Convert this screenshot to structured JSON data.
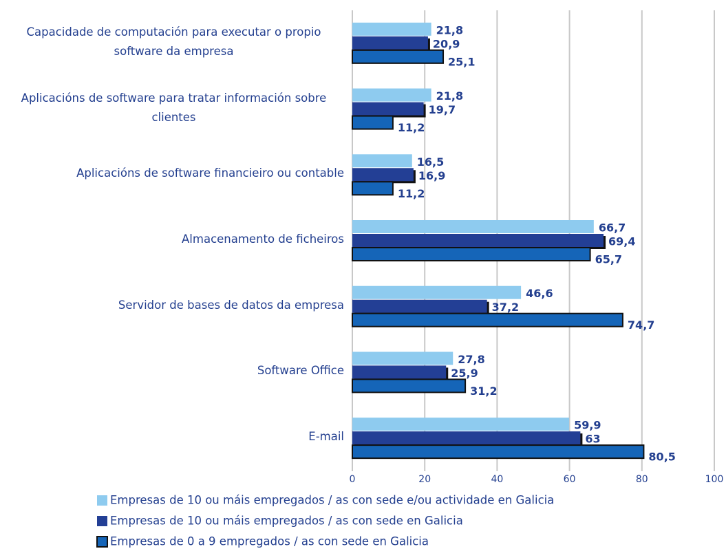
{
  "chart_data": {
    "type": "bar",
    "orientation": "horizontal",
    "categories": [
      "Capacidade de computación para executar o propio software da empresa",
      "Aplicacións de software para tratar información sobre clientes",
      "Aplicacións de software financieiro ou contable",
      "Almacenamento de ficheiros",
      "Servidor de bases de datos da empresa",
      "Software Office",
      "E-mail"
    ],
    "series": [
      {
        "name": "Empresas de 10 ou máis empregados / as con sede e/ou actividade en Galicia",
        "color": "#8ecbef",
        "values": [
          21.8,
          21.8,
          16.5,
          66.7,
          46.6,
          27.8,
          59.9
        ],
        "value_labels": [
          "21,8",
          "21,8",
          "16,5",
          "66,7",
          "46,6",
          "27,8",
          "59,9"
        ]
      },
      {
        "name": "Empresas de 10 ou máis empregados / as con sede en Galicia",
        "color": "#233f95",
        "values": [
          20.9,
          19.7,
          16.9,
          69.4,
          37.2,
          25.9,
          63
        ],
        "value_labels": [
          "20,9",
          "19,7",
          "16,9",
          "69,4",
          "37,2",
          "25,9",
          "63"
        ]
      },
      {
        "name": "Empresas de 0 a 9 empregados / as con sede en Galicia",
        "color": "#1565b8",
        "values": [
          25.1,
          11.2,
          11.2,
          65.7,
          74.7,
          31.2,
          80.5
        ],
        "value_labels": [
          "25,1",
          "11,2",
          "11,2",
          "65,7",
          "74,7",
          "31,2",
          "80,5"
        ]
      }
    ],
    "xlim": [
      0,
      100
    ],
    "xticks": [
      0,
      20,
      40,
      60,
      80,
      100
    ],
    "grid": true,
    "legend": "bottom"
  }
}
